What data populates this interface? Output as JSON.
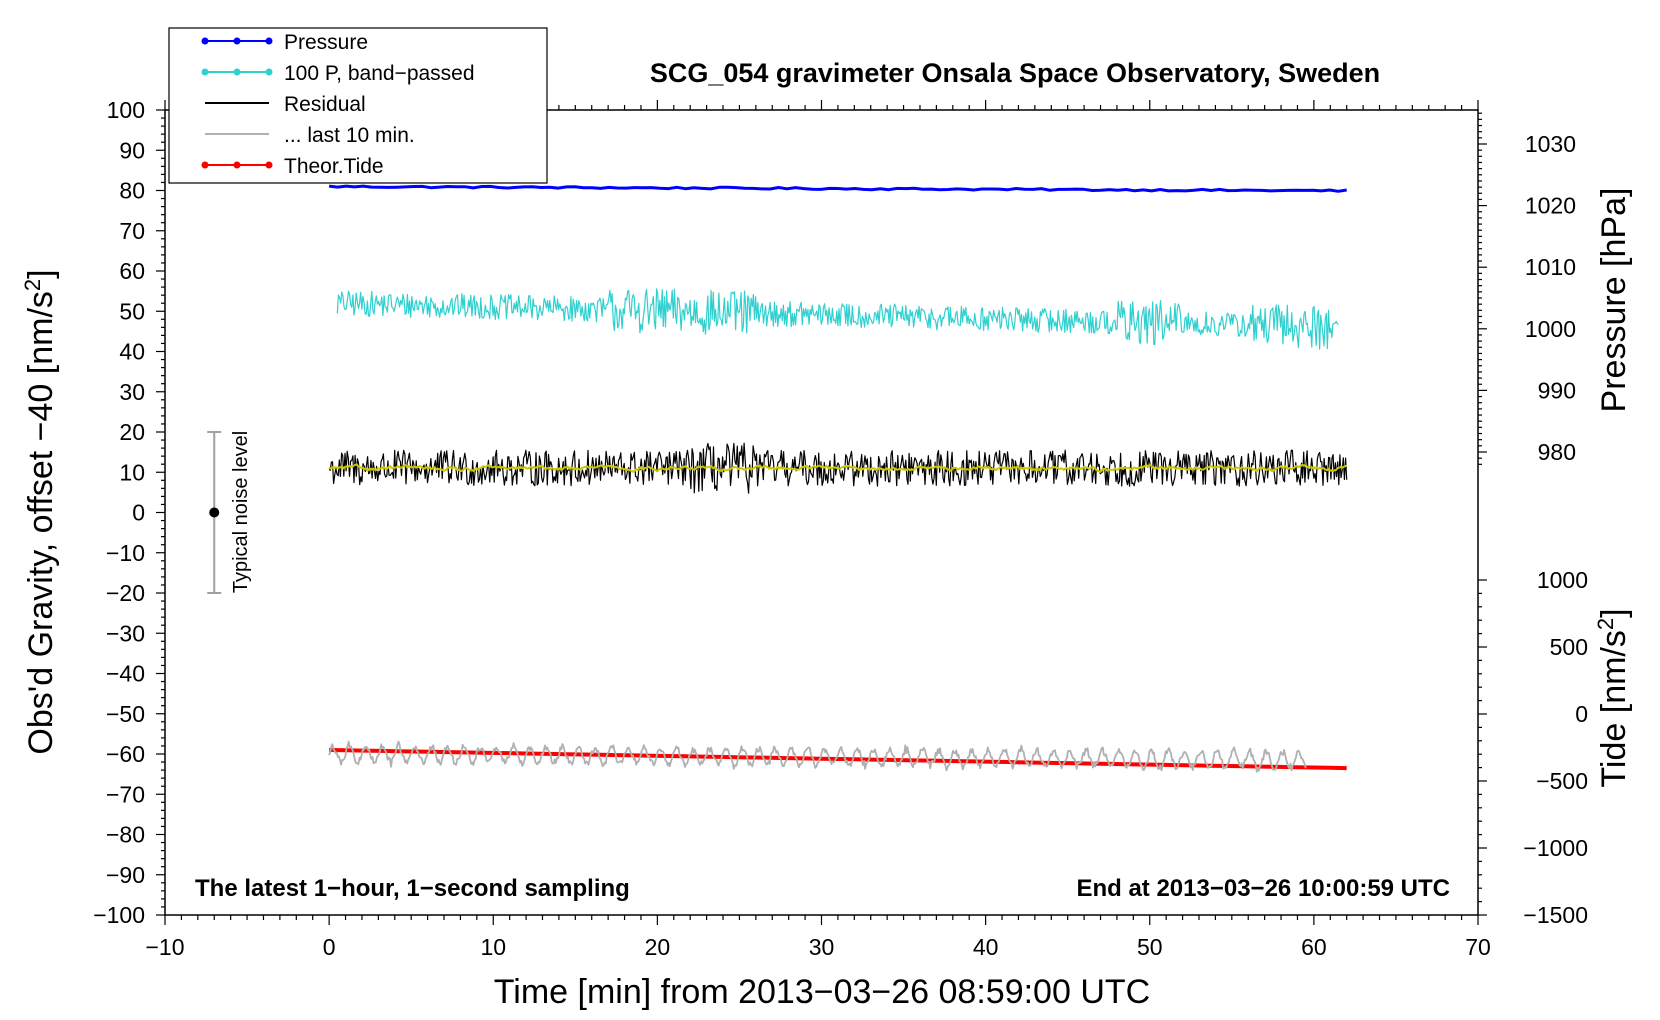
{
  "chart_data": {
    "type": "line",
    "title": "SCG_054 gravimeter Onsala Space Observatory, Sweden",
    "xlabel": "Time [min] from 2013−03−26 08:59:00 UTC",
    "ylabel_left_main": "Obs'd Gravity, offset −40 [nm/s",
    "ylabel_left_sup": "2",
    "ylabel_left_end": "]",
    "ylabel_right_pressure": "Pressure [hPa]",
    "ylabel_right_tide_main": "Tide [nm/s",
    "ylabel_right_tide_sup": "2",
    "ylabel_right_tide_end": "]",
    "xlim": [
      -10,
      70
    ],
    "ylim_left": [
      -100,
      100
    ],
    "ylim_pressure": [
      970,
      1035
    ],
    "ylim_tide": [
      -1500,
      1000
    ],
    "x_ticks": [
      -10,
      0,
      10,
      20,
      30,
      40,
      50,
      60,
      70
    ],
    "x_tick_labels": [
      "−10",
      "0",
      "10",
      "20",
      "30",
      "40",
      "50",
      "60",
      "70"
    ],
    "y_left_ticks": [
      100,
      90,
      80,
      70,
      60,
      50,
      40,
      30,
      20,
      10,
      0,
      -10,
      -20,
      -30,
      -40,
      -50,
      -60,
      -70,
      -80,
      -90,
      -100
    ],
    "y_left_tick_labels": [
      "100",
      "90",
      "80",
      "70",
      "60",
      "50",
      "40",
      "30",
      "20",
      "10",
      "0",
      "−10",
      "−20",
      "−30",
      "−40",
      "−50",
      "−60",
      "−70",
      "−80",
      "−90",
      "−100"
    ],
    "y_pressure_ticks": [
      1030,
      1020,
      1010,
      1000,
      990,
      980
    ],
    "y_pressure_tick_labels": [
      "1030",
      "1020",
      "1010",
      "1000",
      "990",
      "980"
    ],
    "y_tide_ticks": [
      1000,
      500,
      0,
      -500,
      -1000,
      -1500
    ],
    "y_tide_tick_labels": [
      "1000",
      "500",
      "0",
      "−500",
      "−1000",
      "−1500"
    ],
    "grid": false,
    "legend_position": "top-left",
    "legend": [
      {
        "label": "Pressure",
        "color": "#0000ff",
        "marker": true
      },
      {
        "label": "100 P, band−passed",
        "color": "#30d0d0",
        "marker": true
      },
      {
        "label": "Residual",
        "color": "#000000",
        "marker": false
      },
      {
        "label": "... last 10 min.",
        "color": "#b0b0b0",
        "marker": false
      },
      {
        "label": "Theor.Tide",
        "color": "#ff0000",
        "marker": true
      }
    ],
    "annotation_left": "The latest 1−hour, 1−second sampling",
    "annotation_right": "End at 2013−03−26 10:00:59 UTC",
    "noise_label": "Typical noise level",
    "noise_bar": {
      "x": -7,
      "center": 0,
      "low": -20,
      "high": 20
    },
    "series": [
      {
        "name": "Pressure",
        "axis": "pressure",
        "color": "#0000ff",
        "x_start": 0,
        "x_end": 62,
        "y_start": 1023.1,
        "y_end": 1022.4,
        "noise": 0.15,
        "width": 3
      },
      {
        "name": "100 P, band-passed",
        "axis": "left",
        "color": "#30d0d0",
        "x_start": 0.5,
        "x_end": 61.5,
        "y_start": 52,
        "y_end": 46,
        "noise": 3.5,
        "width": 1.2
      },
      {
        "name": "Residual",
        "axis": "left",
        "color": "#000000",
        "x_start": 0,
        "x_end": 62,
        "y_start": 11,
        "y_end": 11,
        "noise": 4.5,
        "width": 1.2
      },
      {
        "name": "Residual smoothed",
        "axis": "left",
        "color": "#c8c800",
        "x_start": 0,
        "x_end": 62,
        "y_start": 11,
        "y_end": 11,
        "noise": 0.8,
        "width": 2
      },
      {
        "name": "Theor.Tide",
        "axis": "left",
        "color": "#ff0000",
        "x_start": 0,
        "x_end": 62,
        "y_start": -59,
        "y_end": -63.5,
        "noise": 0,
        "width": 4
      },
      {
        "name": "... last 10 min.",
        "axis": "left",
        "color": "#b0b0b0",
        "x_start": 0,
        "x_end": 59.5,
        "y_start": -60,
        "y_end": -61.5,
        "noise": 2.2,
        "width": 1.8
      }
    ]
  }
}
